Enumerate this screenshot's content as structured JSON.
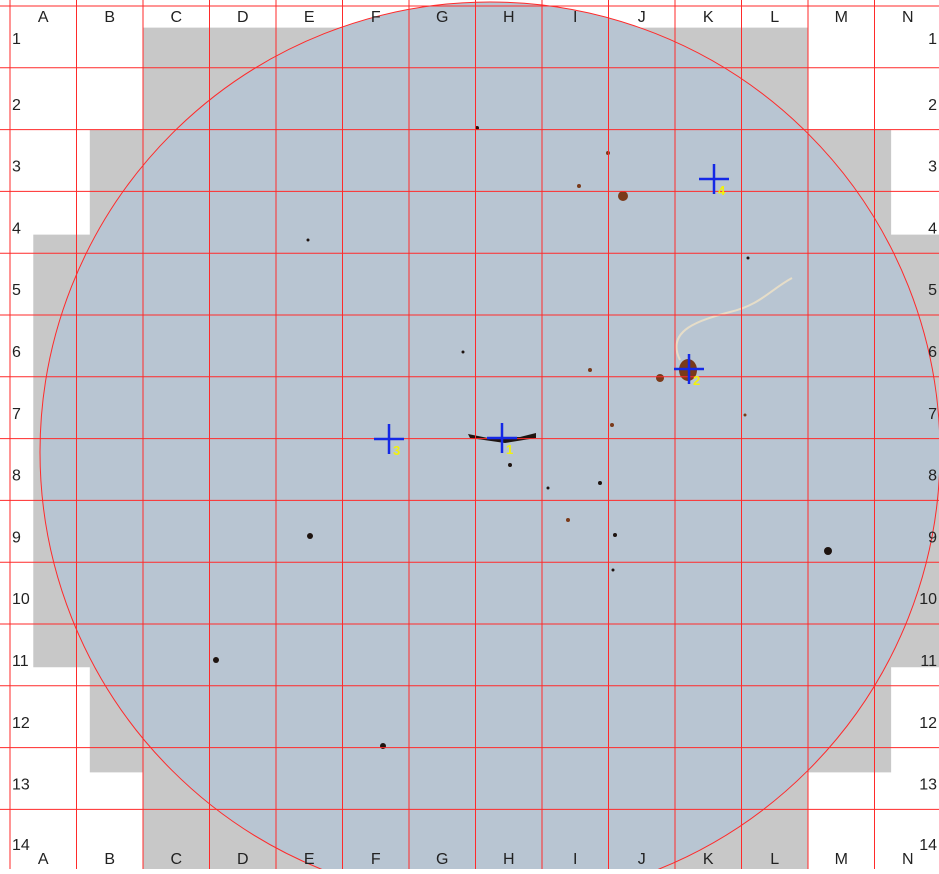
{
  "colors": {
    "background": "#ffffff",
    "mask_gray": "#c8c8c8",
    "filter_fill": "#b8c5d2",
    "grid_red": "#ff2a2a",
    "marker_blue": "#1428e6",
    "marker_label_yellow": "#f2f20a",
    "particle_dark": "#1e1410",
    "particle_brown": "#7a3a1a",
    "fiber": "#e6ddc8"
  },
  "grid": {
    "column_labels": [
      "A",
      "B",
      "C",
      "D",
      "E",
      "F",
      "G",
      "H",
      "I",
      "J",
      "K",
      "L",
      "M",
      "N"
    ],
    "row_labels": [
      "1",
      "2",
      "3",
      "4",
      "5",
      "6",
      "7",
      "8",
      "9",
      "10",
      "11",
      "12",
      "13",
      "14"
    ]
  },
  "markers": [
    {
      "id": "1",
      "label": "1",
      "icon": "crosshair-icon"
    },
    {
      "id": "2",
      "label": "2",
      "icon": "crosshair-icon"
    },
    {
      "id": "3",
      "label": "3",
      "icon": "crosshair-icon"
    },
    {
      "id": "4",
      "label": "4",
      "icon": "crosshair-icon"
    }
  ],
  "particles_icon": "particle-dot-icon",
  "fiber_icon": "fiber-icon"
}
